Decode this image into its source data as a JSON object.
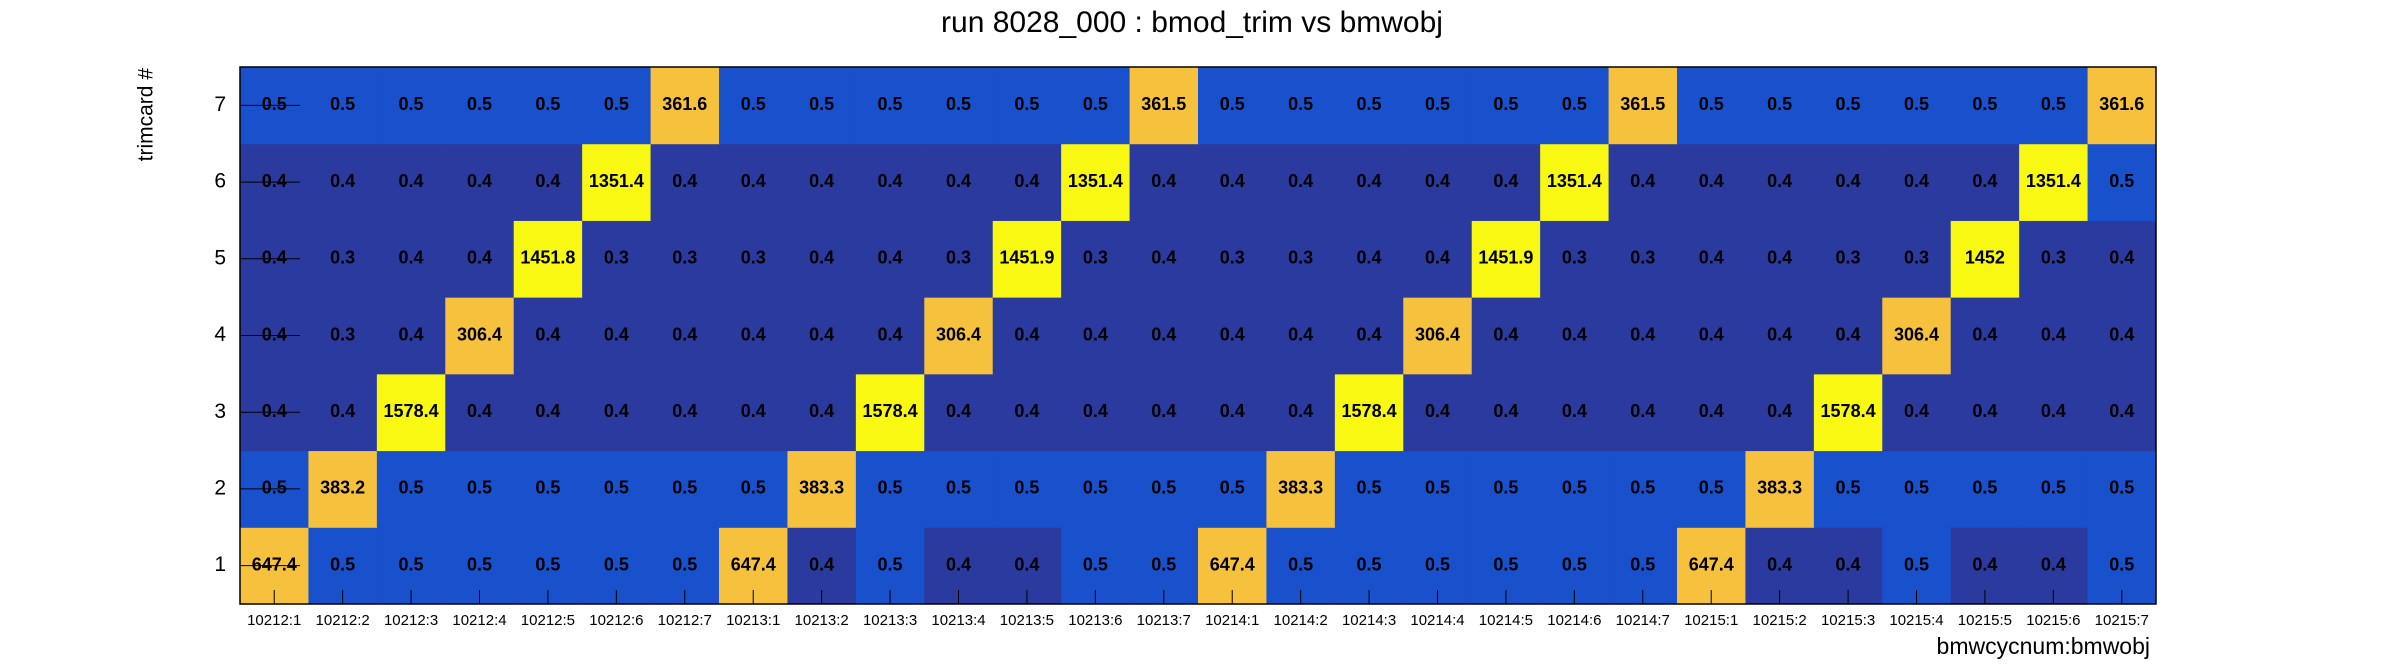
{
  "chart_data": {
    "type": "heatmap",
    "title": "run 8028_000 : bmod_trim vs bmwobj",
    "x_label": "bmwcycnum:bmwobj",
    "y_label": "trimcard #",
    "x": [
      "10212:1",
      "10212:2",
      "10212:3",
      "10212:4",
      "10212:5",
      "10212:6",
      "10212:7",
      "10213:1",
      "10213:2",
      "10213:3",
      "10213:4",
      "10213:5",
      "10213:6",
      "10213:7",
      "10214:1",
      "10214:2",
      "10214:3",
      "10214:4",
      "10214:5",
      "10214:6",
      "10214:7",
      "10215:1",
      "10215:2",
      "10215:3",
      "10215:4",
      "10215:5",
      "10215:6",
      "10215:7"
    ],
    "y": [
      1,
      2,
      3,
      4,
      5,
      6,
      7
    ],
    "values": [
      [
        647.4,
        0.5,
        0.5,
        0.5,
        0.5,
        0.5,
        0.5,
        647.4,
        0.4,
        0.5,
        0.4,
        0.4,
        0.5,
        0.5,
        647.4,
        0.5,
        0.5,
        0.5,
        0.5,
        0.5,
        0.5,
        647.4,
        0.4,
        0.4,
        0.5,
        0.4,
        0.4,
        0.5
      ],
      [
        0.5,
        383.2,
        0.5,
        0.5,
        0.5,
        0.5,
        0.5,
        0.5,
        383.3,
        0.5,
        0.5,
        0.5,
        0.5,
        0.5,
        0.5,
        383.3,
        0.5,
        0.5,
        0.5,
        0.5,
        0.5,
        0.5,
        383.3,
        0.5,
        0.5,
        0.5,
        0.5,
        0.5
      ],
      [
        0.4,
        0.4,
        1578.4,
        0.4,
        0.4,
        0.4,
        0.4,
        0.4,
        0.4,
        1578.4,
        0.4,
        0.4,
        0.4,
        0.4,
        0.4,
        0.4,
        1578.4,
        0.4,
        0.4,
        0.4,
        0.4,
        0.4,
        0.4,
        1578.4,
        0.4,
        0.4,
        0.4,
        0.4
      ],
      [
        0.4,
        0.3,
        0.4,
        306.4,
        0.4,
        0.4,
        0.4,
        0.4,
        0.4,
        0.4,
        306.4,
        0.4,
        0.4,
        0.4,
        0.4,
        0.4,
        0.4,
        306.4,
        0.4,
        0.4,
        0.4,
        0.4,
        0.4,
        0.4,
        306.4,
        0.4,
        0.4,
        0.4
      ],
      [
        0.4,
        0.3,
        0.4,
        0.4,
        1451.8,
        0.3,
        0.3,
        0.3,
        0.4,
        0.4,
        0.3,
        1451.9,
        0.3,
        0.4,
        0.3,
        0.3,
        0.4,
        0.4,
        1451.9,
        0.3,
        0.3,
        0.4,
        0.4,
        0.3,
        0.3,
        1452.0,
        0.3,
        0.4
      ],
      [
        0.4,
        0.4,
        0.4,
        0.4,
        0.4,
        1351.4,
        0.4,
        0.4,
        0.4,
        0.4,
        0.4,
        0.4,
        1351.4,
        0.4,
        0.4,
        0.4,
        0.4,
        0.4,
        0.4,
        1351.4,
        0.4,
        0.4,
        0.4,
        0.4,
        0.4,
        0.4,
        1351.4,
        0.5
      ],
      [
        0.5,
        0.5,
        0.5,
        0.5,
        0.5,
        0.5,
        361.6,
        0.5,
        0.5,
        0.5,
        0.5,
        0.5,
        0.5,
        361.5,
        0.5,
        0.5,
        0.5,
        0.5,
        0.5,
        0.5,
        361.5,
        0.5,
        0.5,
        0.5,
        0.5,
        0.5,
        0.5,
        361.6
      ]
    ],
    "palette": [
      {
        "from": 0,
        "color": "#2a3a9e"
      },
      {
        "from": 0.45,
        "color": "#1950cc"
      },
      {
        "from": 100,
        "color": "#f6c23e"
      },
      {
        "from": 1000,
        "color": "#f8f812"
      }
    ]
  }
}
